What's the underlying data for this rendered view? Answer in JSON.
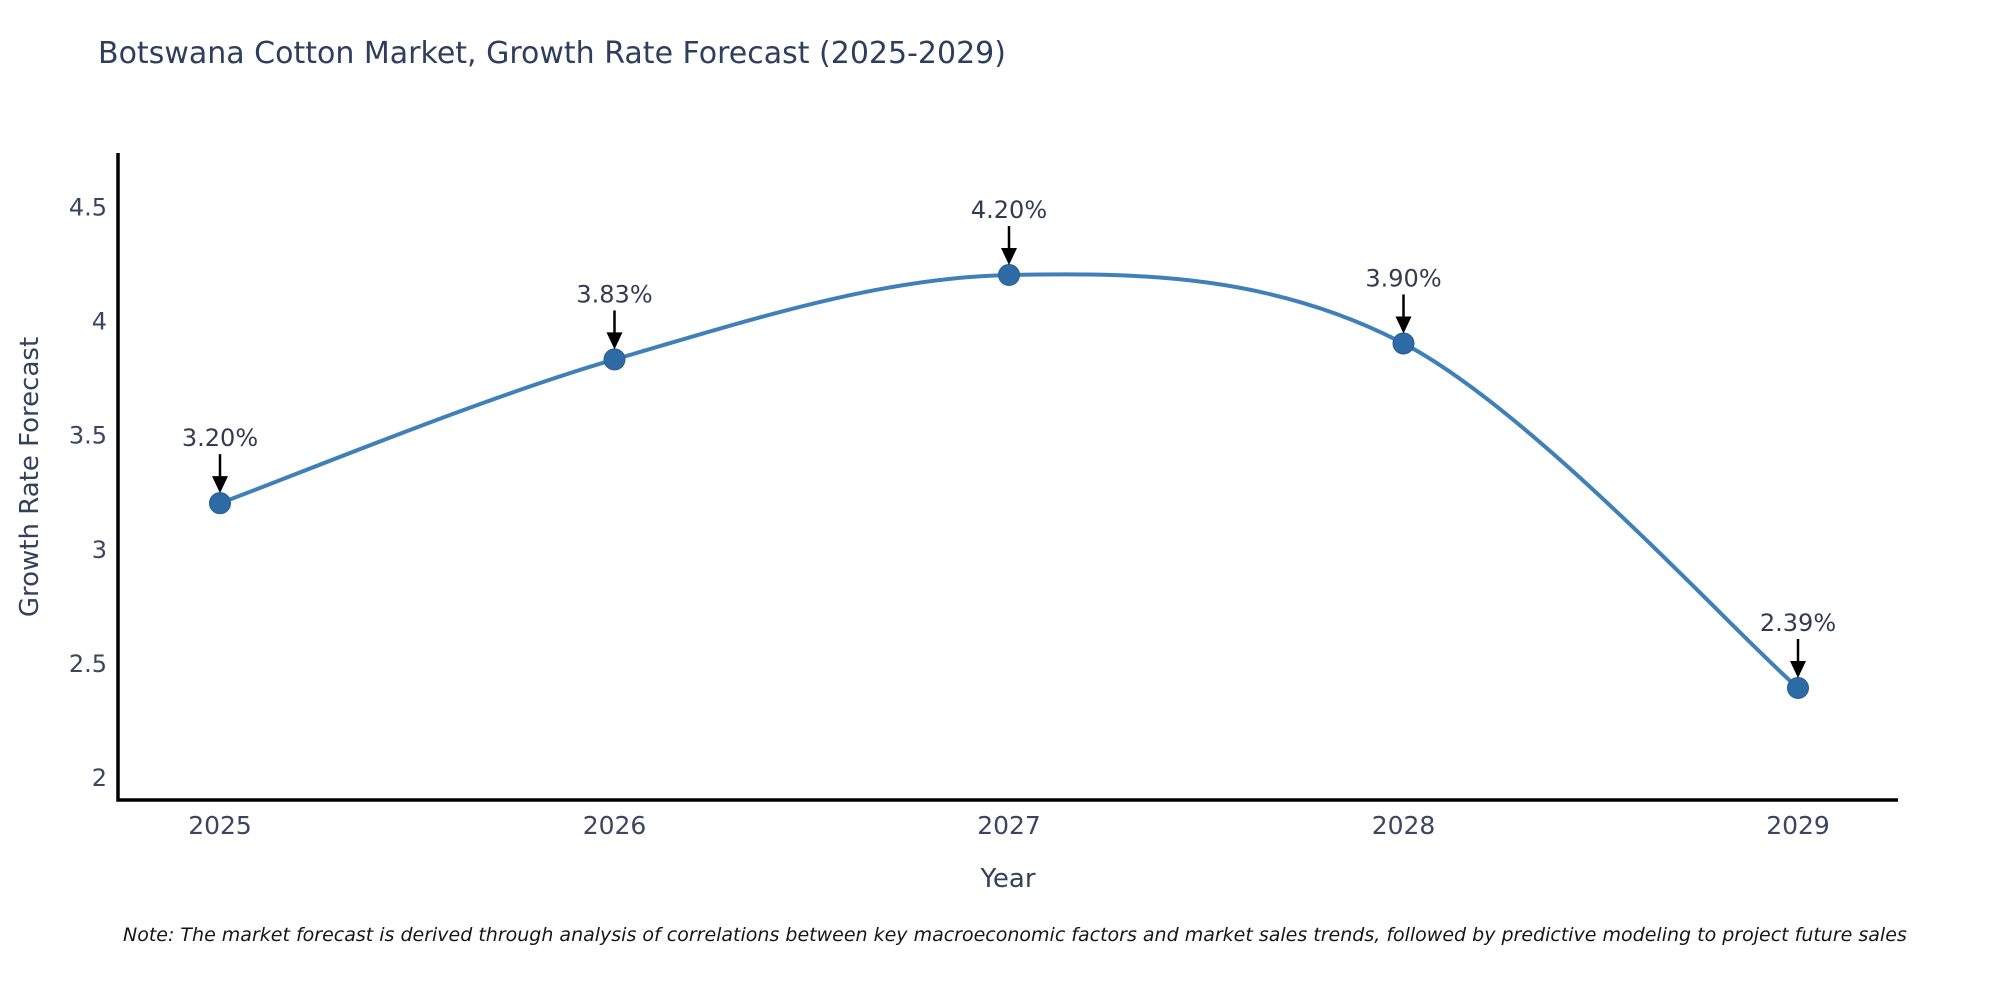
{
  "title": "Botswana Cotton Market, Growth Rate Forecast (2025-2029)",
  "note": "Note: The market forecast is derived through analysis of correlations between key macroeconomic factors and market sales trends, followed by predictive modeling to project future sales",
  "colors": {
    "line": "#4080b8",
    "marker_fill": "#2e6aa3",
    "marker_edge": "#275d91",
    "axis_spine": "#000000",
    "arrow": "#000000",
    "title_text": "#2e3f5e",
    "tick_text": "#3a4660",
    "annotation_text": "#313c51"
  },
  "chart_data": {
    "type": "line",
    "title": "Botswana Cotton Market, Growth Rate Forecast (2025-2029)",
    "categories": [
      "2025",
      "2026",
      "2027",
      "2028",
      "2029"
    ],
    "values": [
      3.2,
      3.83,
      4.2,
      3.9,
      2.39
    ],
    "point_labels": [
      "3.20%",
      "3.83%",
      "4.20%",
      "3.90%",
      "2.39%"
    ],
    "xlabel": "Year",
    "ylabel": "Growth Rate Forecast",
    "yticks": [
      2,
      2.5,
      3,
      3.5,
      4,
      4.5
    ],
    "ylim": [
      1.9,
      4.73
    ],
    "grid": false,
    "legend": "none",
    "line_shape": "spline",
    "marker": "circle",
    "annotations": "value labels with black down arrows above each point"
  }
}
